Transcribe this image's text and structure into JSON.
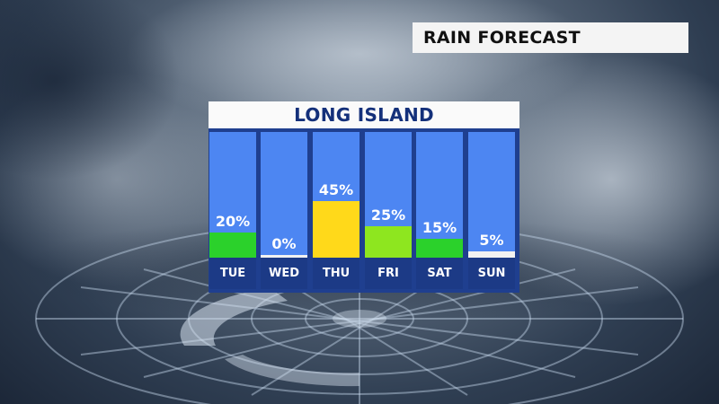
{
  "header": {
    "title": "RAIN FORECAST"
  },
  "panel": {
    "location": "LONG ISLAND"
  },
  "colors": {
    "zero": "#f2f2f2",
    "low": "#2bd12b",
    "mid": "#8ee61f",
    "high": "#ffd91a",
    "sky": "#4d86f2",
    "day_bg": "#1c3a86"
  },
  "chart_data": {
    "type": "bar",
    "title": "LONG ISLAND",
    "categories": [
      "TUE",
      "WED",
      "THU",
      "FRI",
      "SAT",
      "SUN"
    ],
    "values": [
      20,
      0,
      45,
      25,
      15,
      5
    ],
    "labels": [
      "20%",
      "0%",
      "45%",
      "25%",
      "15%",
      "5%"
    ],
    "bar_colors": [
      "#2bd12b",
      "#f2f2f2",
      "#ffd91a",
      "#8ee61f",
      "#2bd12b",
      "#f2f2f2"
    ],
    "ylim": [
      0,
      100
    ]
  }
}
